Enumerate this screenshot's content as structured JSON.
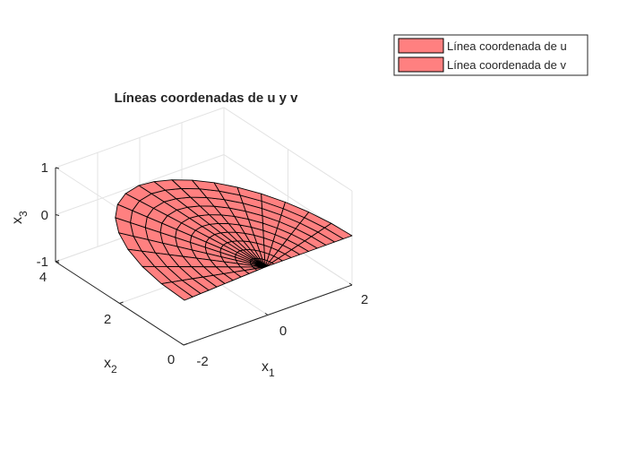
{
  "chart_data": {
    "type": "surface3d",
    "title": "Líneas coordenadas de u y v",
    "xlabel": "x",
    "xlabel_sub": "1",
    "ylabel": "x",
    "ylabel_sub": "2",
    "zlabel": "x",
    "zlabel_sub": "3",
    "xticks": [
      "-2",
      "0",
      "2"
    ],
    "yticks": [
      "0",
      "2",
      "4"
    ],
    "zticks": [
      "-1",
      "0",
      "1"
    ],
    "xlim": [
      -2,
      2
    ],
    "ylim": [
      0,
      4
    ],
    "zlim": [
      -1,
      1
    ],
    "grid": true,
    "legend_position": "top-right",
    "series": [
      {
        "name": "Línea coordenada de u",
        "color": "#ff8080",
        "edge": "#000000"
      },
      {
        "name": "Línea coordenada de v",
        "color": "#ff8080",
        "edge": "#000000"
      }
    ]
  }
}
